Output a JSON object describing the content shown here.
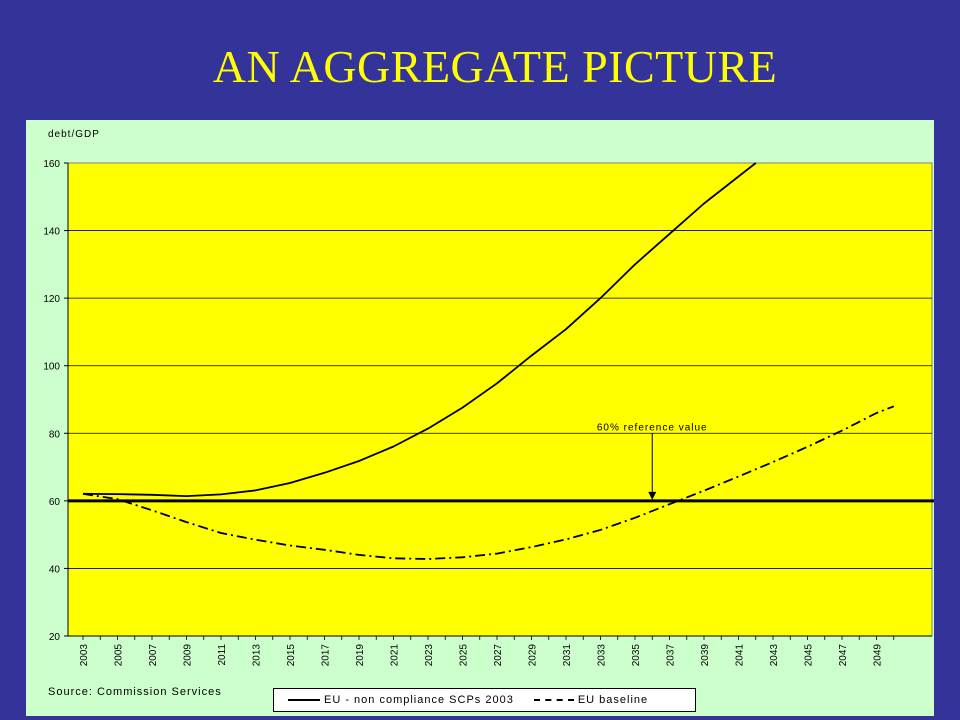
{
  "slide": {
    "title": "AN AGGREGATE PICTURE"
  },
  "colors": {
    "background": "#333399",
    "title": "#FFFF00",
    "panel": "#CCFFCC",
    "plot": "#FFFF00",
    "lines": "#000000"
  },
  "chart_data": {
    "type": "line",
    "title": "",
    "xlabel": "",
    "ylabel": "debt/GDP",
    "ylim": [
      20,
      160
    ],
    "yticks": [
      20,
      40,
      60,
      80,
      100,
      120,
      140,
      160
    ],
    "xlim": [
      2003,
      2050
    ],
    "xticks": [
      "2003",
      "2005",
      "2007",
      "2009",
      "2011",
      "2013",
      "2015",
      "2017",
      "2019",
      "2021",
      "2023",
      "2025",
      "2027",
      "2029",
      "2031",
      "2033",
      "2035",
      "2037",
      "2039",
      "2041",
      "2043",
      "2045",
      "2047",
      "2049"
    ],
    "grid": true,
    "legend_position": "bottom",
    "series": [
      {
        "name": "EU - non compliance SCPs 2003",
        "style": "solid",
        "x": [
          2003,
          2005,
          2007,
          2009,
          2011,
          2013,
          2015,
          2017,
          2019,
          2021,
          2023,
          2025,
          2027,
          2029,
          2031,
          2033,
          2035,
          2037,
          2039,
          2041,
          2042
        ],
        "y": [
          62.1,
          62.0,
          61.8,
          61.4,
          61.9,
          63.1,
          65.3,
          68.3,
          71.8,
          76.1,
          81.4,
          87.6,
          94.8,
          103.0,
          110.8,
          120.0,
          130.0,
          139.0,
          148.0,
          156.0,
          160.0
        ]
      },
      {
        "name": "EU baseline",
        "style": "dashed",
        "x": [
          2003,
          2005,
          2007,
          2009,
          2011,
          2013,
          2015,
          2017,
          2019,
          2021,
          2023,
          2025,
          2027,
          2029,
          2031,
          2033,
          2035,
          2037,
          2039,
          2041,
          2043,
          2045,
          2047,
          2049,
          2050
        ],
        "y": [
          62.1,
          60.5,
          57.2,
          53.7,
          50.5,
          48.5,
          46.8,
          45.5,
          44.0,
          43.0,
          42.8,
          43.3,
          44.4,
          46.3,
          48.6,
          51.4,
          55.0,
          59.0,
          63.0,
          67.2,
          71.5,
          76.0,
          80.8,
          86.0,
          88.0
        ]
      }
    ],
    "reference": {
      "value": 60,
      "label": "60% reference value",
      "arrow_year": 2036
    },
    "source": "Source: Commission Services"
  }
}
